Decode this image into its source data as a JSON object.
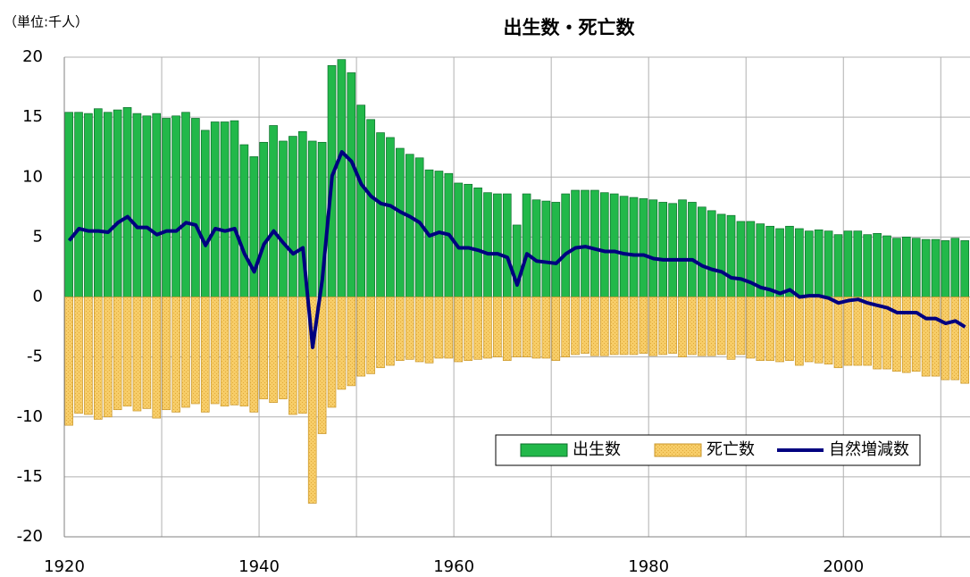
{
  "chart_data": {
    "type": "bar-line",
    "title": "出生数・死亡数",
    "y_label": "（単位:千人）",
    "x": [
      1920,
      1921,
      1922,
      1923,
      1924,
      1925,
      1926,
      1927,
      1928,
      1929,
      1930,
      1931,
      1932,
      1933,
      1934,
      1935,
      1936,
      1937,
      1938,
      1939,
      1940,
      1941,
      1942,
      1943,
      1944,
      1945,
      1946,
      1947,
      1948,
      1949,
      1950,
      1951,
      1952,
      1953,
      1954,
      1955,
      1956,
      1957,
      1958,
      1959,
      1960,
      1961,
      1962,
      1963,
      1964,
      1965,
      1966,
      1967,
      1968,
      1969,
      1970,
      1971,
      1972,
      1973,
      1974,
      1975,
      1976,
      1977,
      1978,
      1979,
      1980,
      1981,
      1982,
      1983,
      1984,
      1985,
      1986,
      1987,
      1988,
      1989,
      1990,
      1991,
      1992,
      1993,
      1994,
      1995,
      1996,
      1997,
      1998,
      1999,
      2000,
      2001,
      2002,
      2003,
      2004,
      2005,
      2006,
      2007,
      2008,
      2009,
      2010,
      2011,
      2012
    ],
    "series": [
      {
        "name": "出生数",
        "kind": "bar",
        "color": "#22b84a",
        "values": [
          15.4,
          15.4,
          15.3,
          15.7,
          15.4,
          15.6,
          15.8,
          15.3,
          15.1,
          15.3,
          14.9,
          15.1,
          15.4,
          14.9,
          13.9,
          14.6,
          14.6,
          14.7,
          12.7,
          11.7,
          12.9,
          14.3,
          13.0,
          13.4,
          13.8,
          13.0,
          12.9,
          19.3,
          19.8,
          18.7,
          16.0,
          14.8,
          13.7,
          13.3,
          12.4,
          11.9,
          11.6,
          10.6,
          10.5,
          10.3,
          9.5,
          9.4,
          9.1,
          8.7,
          8.6,
          8.6,
          6.0,
          8.6,
          8.1,
          8.0,
          7.9,
          8.6,
          8.9,
          8.9,
          8.9,
          8.7,
          8.6,
          8.4,
          8.3,
          8.2,
          8.1,
          7.9,
          7.8,
          8.1,
          7.9,
          7.5,
          7.2,
          6.9,
          6.8,
          6.3,
          6.3,
          6.1,
          5.9,
          5.7,
          5.9,
          5.7,
          5.5,
          5.6,
          5.5,
          5.2,
          5.5,
          5.5,
          5.2,
          5.3,
          5.1,
          4.9,
          5.0,
          4.9,
          4.8,
          4.8,
          4.7,
          4.9,
          4.7
        ]
      },
      {
        "name": "死亡数",
        "kind": "bar",
        "color": "#f7cd68",
        "values": [
          -10.7,
          -9.7,
          -9.8,
          -10.2,
          -10.0,
          -9.4,
          -9.1,
          -9.5,
          -9.3,
          -10.1,
          -9.4,
          -9.6,
          -9.2,
          -8.9,
          -9.6,
          -8.9,
          -9.1,
          -9.0,
          -9.1,
          -9.6,
          -8.5,
          -8.8,
          -8.5,
          -9.8,
          -9.7,
          -17.2,
          -11.4,
          -9.2,
          -7.7,
          -7.4,
          -6.6,
          -6.4,
          -5.9,
          -5.7,
          -5.3,
          -5.2,
          -5.4,
          -5.5,
          -5.1,
          -5.1,
          -5.4,
          -5.3,
          -5.2,
          -5.1,
          -5.0,
          -5.3,
          -5.0,
          -5.0,
          -5.1,
          -5.1,
          -5.3,
          -5.0,
          -4.8,
          -4.7,
          -4.9,
          -4.9,
          -4.8,
          -4.8,
          -4.8,
          -4.7,
          -4.9,
          -4.8,
          -4.7,
          -5.0,
          -4.8,
          -4.9,
          -4.9,
          -4.8,
          -5.2,
          -4.8,
          -5.1,
          -5.3,
          -5.3,
          -5.4,
          -5.3,
          -5.7,
          -5.4,
          -5.5,
          -5.6,
          -5.9,
          -5.7,
          -5.7,
          -5.7,
          -6.0,
          -6.0,
          -6.2,
          -6.3,
          -6.2,
          -6.6,
          -6.6,
          -6.9,
          -6.9,
          -7.2
        ]
      },
      {
        "name": "自然増減数",
        "kind": "line",
        "color": "#000080",
        "values": [
          4.7,
          5.7,
          5.5,
          5.5,
          5.4,
          6.2,
          6.7,
          5.8,
          5.8,
          5.2,
          5.5,
          5.5,
          6.2,
          6.0,
          4.3,
          5.7,
          5.5,
          5.7,
          3.6,
          2.1,
          4.4,
          5.5,
          4.5,
          3.6,
          4.1,
          -4.2,
          1.5,
          10.1,
          12.1,
          11.3,
          9.4,
          8.4,
          7.8,
          7.6,
          7.1,
          6.7,
          6.2,
          5.1,
          5.4,
          5.2,
          4.1,
          4.1,
          3.9,
          3.6,
          3.6,
          3.3,
          1.0,
          3.6,
          3.0,
          2.9,
          2.8,
          3.6,
          4.1,
          4.2,
          4.0,
          3.8,
          3.8,
          3.6,
          3.5,
          3.5,
          3.2,
          3.1,
          3.1,
          3.1,
          3.1,
          2.6,
          2.3,
          2.1,
          1.6,
          1.5,
          1.2,
          0.8,
          0.6,
          0.3,
          0.6,
          0.0,
          0.1,
          0.1,
          -0.1,
          -0.5,
          -0.3,
          -0.2,
          -0.5,
          -0.7,
          -0.9,
          -1.3,
          -1.3,
          -1.3,
          -1.8,
          -1.8,
          -2.2,
          -2.0,
          -2.5
        ]
      }
    ],
    "xlim": [
      1920,
      2013
    ],
    "xticks": [
      1920,
      1940,
      1960,
      1980,
      2000
    ],
    "xminor_ticks": [
      1930,
      1950,
      1970,
      1990,
      2010
    ],
    "ylim": [
      -20,
      20
    ],
    "yticks": [
      -20,
      -15,
      -10,
      -5,
      0,
      5,
      10,
      15,
      20
    ],
    "grid": true,
    "legend": "lower right"
  }
}
